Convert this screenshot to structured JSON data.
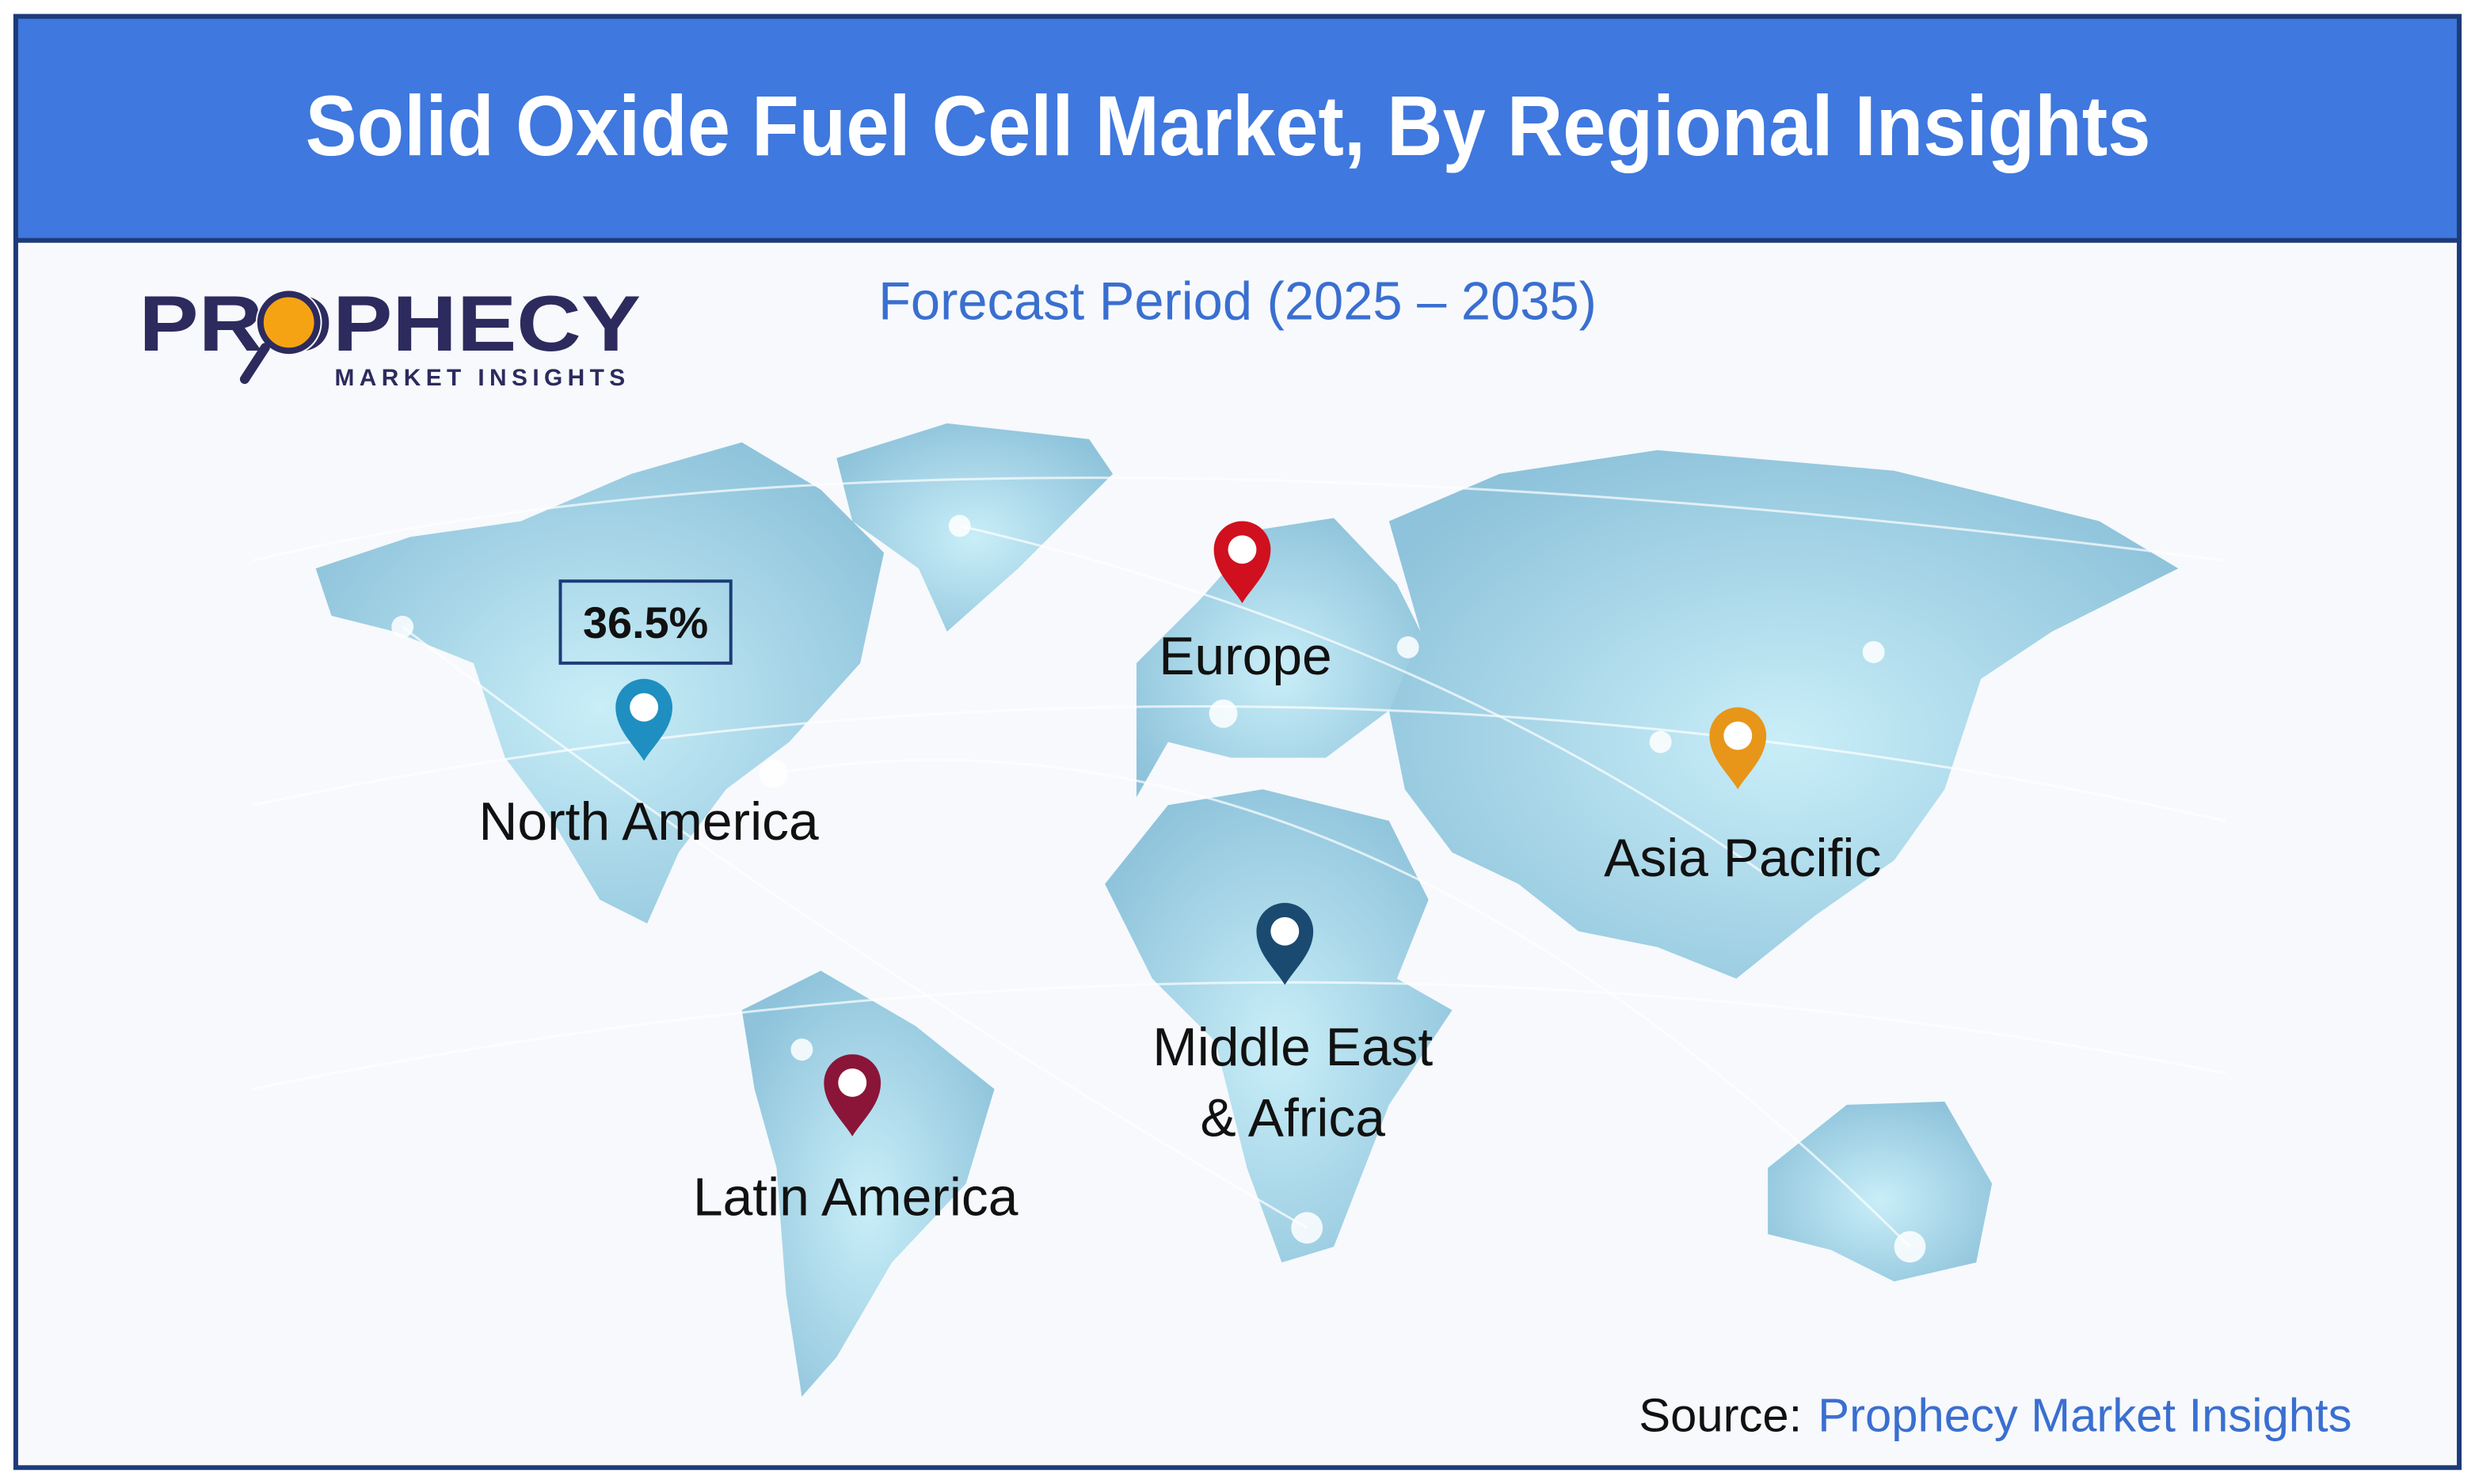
{
  "header": {
    "title": "Solid Oxide Fuel Cell Market, By Regional Insights"
  },
  "subtitle": "Forecast Period (2025 – 2035)",
  "logo": {
    "name": "PROPHECY",
    "tagline": "MARKET INSIGHTS"
  },
  "highlight": "36.5%",
  "regions": [
    {
      "label": "North America"
    },
    {
      "label": "Europe"
    },
    {
      "label": "Asia Pacific"
    },
    {
      "label": "Middle East",
      "label2": "& Africa"
    },
    {
      "label": "Latin America"
    }
  ],
  "source": {
    "prefix": "Source:",
    "name": "Prophecy Market Insights"
  }
}
